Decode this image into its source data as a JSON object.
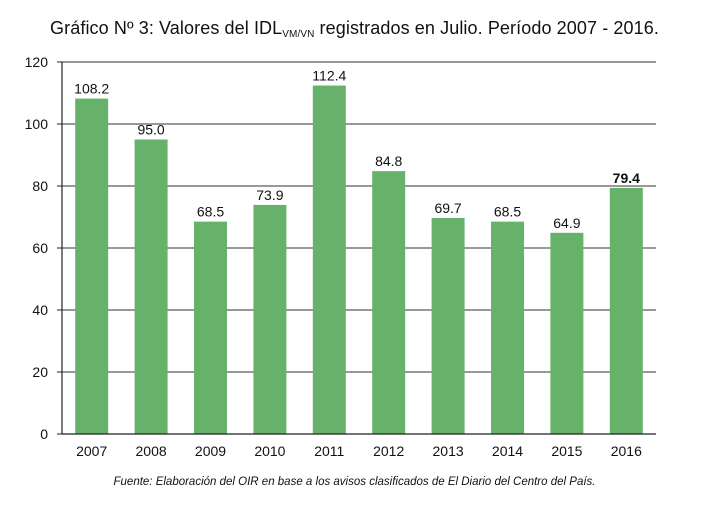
{
  "chart_data": {
    "type": "bar",
    "title": {
      "prefix": "Gráfico Nº 3: Valores del IDL",
      "subscript": "VM/VN",
      "suffix": " registrados en Julio. Período 2007 - 2016."
    },
    "categories": [
      "2007",
      "2008",
      "2009",
      "2010",
      "2011",
      "2012",
      "2013",
      "2014",
      "2015",
      "2016"
    ],
    "values": [
      108.2,
      95.0,
      68.5,
      73.9,
      112.4,
      84.8,
      69.7,
      68.5,
      64.9,
      79.4
    ],
    "value_labels": [
      "108.2",
      "95.0",
      "68.5",
      "73.9",
      "112.4",
      "84.8",
      "69.7",
      "68.5",
      "64.9",
      "79.4"
    ],
    "highlighted_index": 9,
    "ylim": [
      0,
      120
    ],
    "yticks": [
      0,
      20,
      40,
      60,
      80,
      100,
      120
    ],
    "xlabel": "",
    "ylabel": "",
    "grid": true,
    "legend": "none",
    "bar_color": "#66b26a",
    "source": "Fuente: Elaboración del OIR en base a los avisos clasificados de El Diario del Centro del País."
  }
}
